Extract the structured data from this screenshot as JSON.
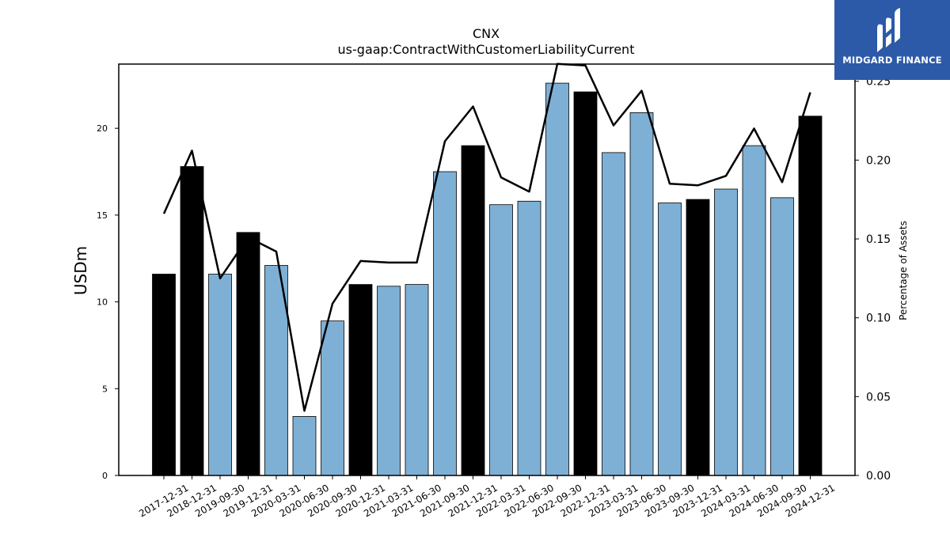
{
  "brand": {
    "name": "MIDGARD FINANCE",
    "color": "#2c5aa8"
  },
  "chart_data": {
    "type": "bar",
    "title": "CNX",
    "subtitle": "us-gaap:ContractWithCustomerLiabilityCurrent",
    "ylabel": "USDm",
    "ylabel_right": "Percentage of Assets",
    "ylim": [
      0,
      23.7
    ],
    "ylim_right": [
      0,
      0.2609
    ],
    "yticks": [
      0,
      5,
      10,
      15,
      20
    ],
    "yticks_right": [
      "0.00",
      "0.05",
      "0.10",
      "0.15",
      "0.20",
      "0.25"
    ],
    "colors": {
      "annual": "#000000",
      "quarterly": "#7eb0d5",
      "line": "#000000"
    },
    "categories": [
      "2017-12-31",
      "2018-12-31",
      "2019-09-30",
      "2019-12-31",
      "2020-03-31",
      "2020-06-30",
      "2020-09-30",
      "2020-12-31",
      "2021-03-31",
      "2021-06-30",
      "2021-09-30",
      "2021-12-31",
      "2022-03-31",
      "2022-06-30",
      "2022-09-30",
      "2022-12-31",
      "2023-03-31",
      "2023-06-30",
      "2023-09-30",
      "2023-12-31",
      "2024-03-31",
      "2024-06-30",
      "2024-09-30",
      "2024-12-31"
    ],
    "annual": [
      true,
      true,
      false,
      true,
      false,
      false,
      false,
      true,
      false,
      false,
      false,
      true,
      false,
      false,
      false,
      true,
      false,
      false,
      false,
      true,
      false,
      false,
      false,
      true
    ],
    "series": [
      {
        "values": [
          11.6,
          17.8,
          11.6,
          14.0,
          12.1,
          3.4,
          8.9,
          11.0,
          10.9,
          11.0,
          17.5,
          19.0,
          15.6,
          15.8,
          22.6,
          22.1,
          18.6,
          20.9,
          15.7,
          15.9,
          16.5,
          19.0,
          16.0,
          20.7
        ]
      },
      {
        "axis": "right",
        "type": "line",
        "values": [
          0.166,
          0.206,
          0.125,
          0.151,
          0.142,
          0.041,
          0.109,
          0.136,
          0.135,
          0.135,
          0.212,
          0.234,
          0.189,
          0.18,
          0.261,
          0.26,
          0.222,
          0.244,
          0.185,
          0.184,
          0.19,
          0.22,
          0.186,
          0.243
        ]
      }
    ]
  }
}
